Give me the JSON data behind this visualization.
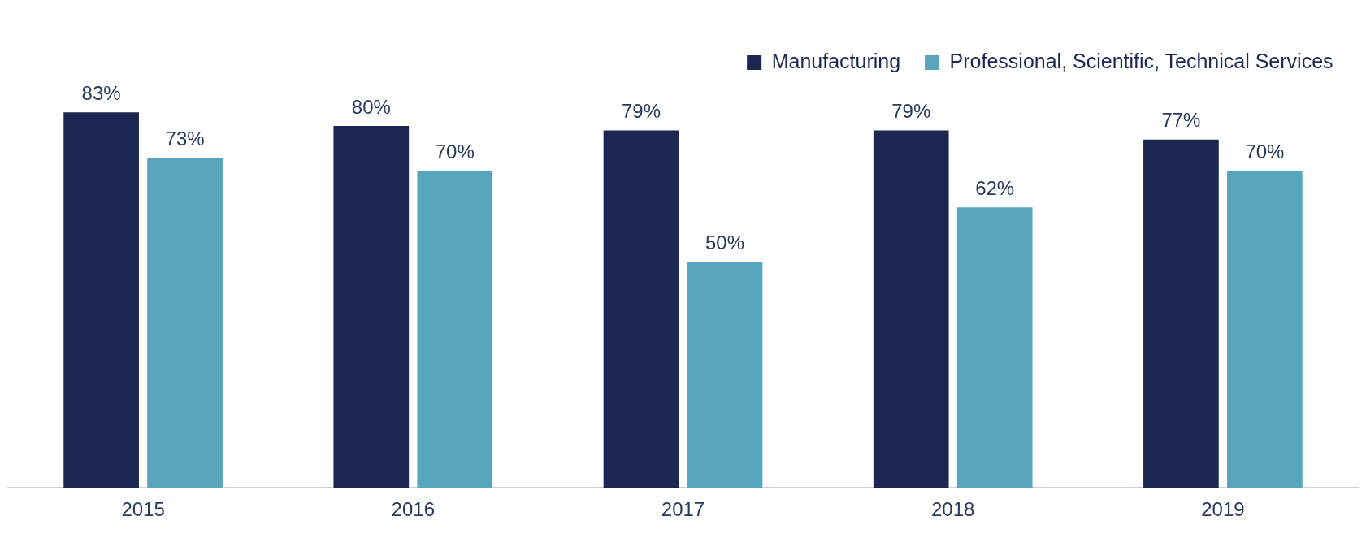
{
  "chart_data": {
    "type": "bar",
    "categories": [
      "2015",
      "2016",
      "2017",
      "2018",
      "2019"
    ],
    "series": [
      {
        "name": "Manufacturing",
        "color": "#1b2651",
        "values": [
          83,
          80,
          79,
          79,
          77
        ],
        "value_labels": [
          "83%",
          "80%",
          "79%",
          "79%",
          "77%"
        ]
      },
      {
        "name": "Professional, Scientific, Technical Services",
        "color": "#58a6bb",
        "values": [
          73,
          70,
          50,
          62,
          70
        ],
        "value_labels": [
          "73%",
          "70%",
          "50%",
          "62%",
          "70%"
        ]
      }
    ],
    "tick_labels": "x",
    "grid": false,
    "legend": "top right"
  }
}
